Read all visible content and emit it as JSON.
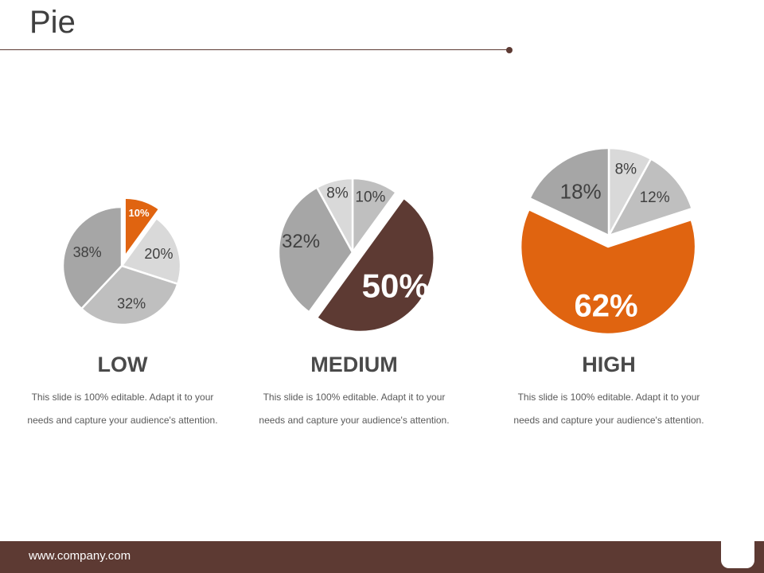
{
  "page": {
    "title": "Pie"
  },
  "chart_data": [
    {
      "type": "pie",
      "label": "LOW",
      "description": "This slide is 100% editable. Adapt it to your needs and capture your audience's attention.",
      "slices": [
        {
          "value": 10,
          "label": "10%",
          "color": "#e06410",
          "exploded": true
        },
        {
          "value": 20,
          "label": "20%",
          "color": "#d9d9d9",
          "exploded": false
        },
        {
          "value": 32,
          "label": "32%",
          "color": "#bfbfbf",
          "exploded": false
        },
        {
          "value": 38,
          "label": "38%",
          "color": "#a6a6a6",
          "exploded": false
        }
      ]
    },
    {
      "type": "pie",
      "label": "MEDIUM",
      "description": "This slide is 100% editable. Adapt it to your needs and capture your audience's attention.",
      "slices": [
        {
          "value": 10,
          "label": "10%",
          "color": "#bfbfbf",
          "exploded": false
        },
        {
          "value": 50,
          "label": "50%",
          "color": "#5d3a33",
          "exploded": true
        },
        {
          "value": 32,
          "label": "32%",
          "color": "#a6a6a6",
          "exploded": false
        },
        {
          "value": 8,
          "label": "8%",
          "color": "#d9d9d9",
          "exploded": false
        }
      ]
    },
    {
      "type": "pie",
      "label": "HIGH",
      "description": "This slide is 100% editable. Adapt it to your needs and capture your audience's attention.",
      "slices": [
        {
          "value": 8,
          "label": "8%",
          "color": "#d9d9d9",
          "exploded": false
        },
        {
          "value": 12,
          "label": "12%",
          "color": "#bfbfbf",
          "exploded": false
        },
        {
          "value": 62,
          "label": "62%",
          "color": "#e06410",
          "exploded": true
        },
        {
          "value": 18,
          "label": "18%",
          "color": "#a6a6a6",
          "exploded": false
        }
      ]
    }
  ],
  "footer": {
    "url": "www.company.com"
  }
}
